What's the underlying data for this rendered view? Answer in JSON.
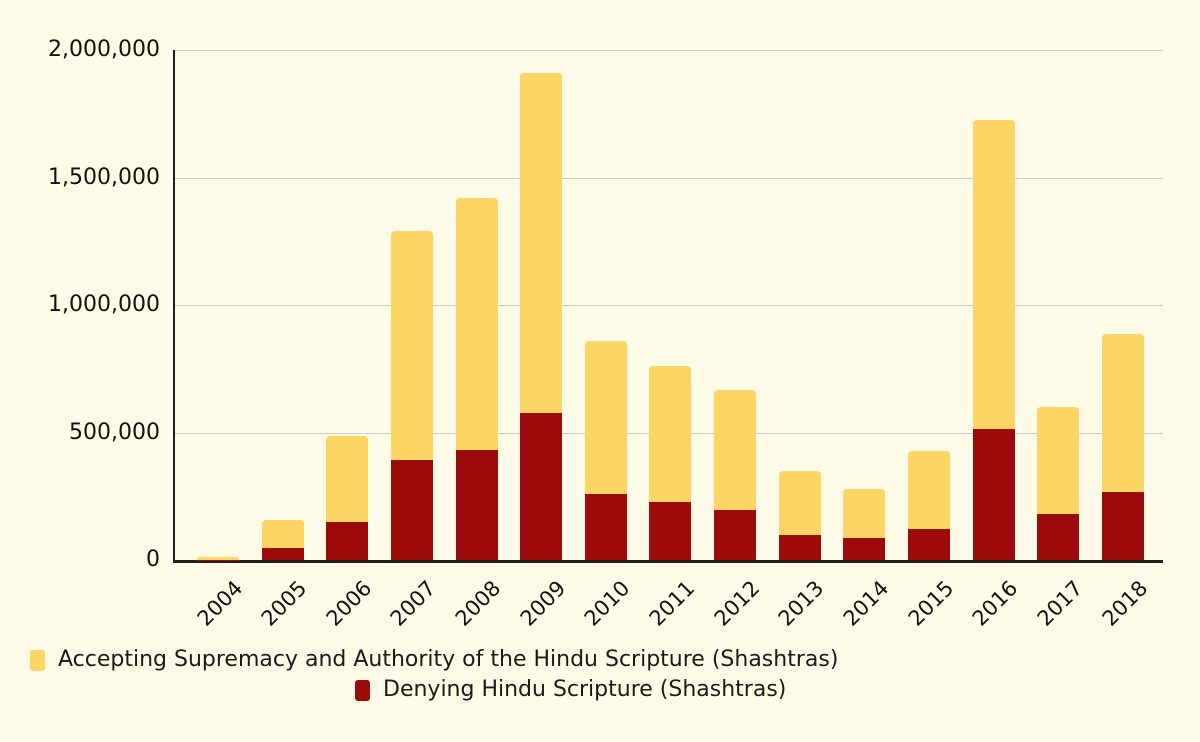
{
  "chart_data": {
    "type": "bar",
    "stacked": true,
    "title": "",
    "xlabel": "",
    "ylabel": "",
    "categories": [
      "2004",
      "2005",
      "2006",
      "2007",
      "2008",
      "2009",
      "2010",
      "2011",
      "2012",
      "2013",
      "2014",
      "2015",
      "2016",
      "2017",
      "2018"
    ],
    "series": [
      {
        "name": "Accepting Supremacy and Authority of the Hindu Scripture (Shashtras)",
        "color": "#FCD565",
        "values": [
          10000,
          109000,
          339000,
          897000,
          990000,
          1333000,
          602000,
          535000,
          472000,
          250000,
          192000,
          307000,
          1213000,
          420000,
          620000
        ]
      },
      {
        "name": "Denying Hindu Scripture (Shashtras)",
        "color": "#9C0A0A",
        "values": [
          2000,
          48000,
          148000,
          393000,
          430000,
          576000,
          258000,
          227000,
          196000,
          100000,
          88000,
          122000,
          512000,
          180000,
          265000
        ]
      }
    ],
    "stack_bottom_series_index": 1,
    "ylim": [
      0,
      2000000
    ],
    "ytick_interval": 500000,
    "yticks": [
      {
        "value": 0,
        "label": "0"
      },
      {
        "value": 500000,
        "label": "500,000"
      },
      {
        "value": 1000000,
        "label": "1,000,000"
      },
      {
        "value": 1500000,
        "label": "1,500,000"
      },
      {
        "value": 2000000,
        "label": "2,000,000"
      }
    ],
    "grid": true,
    "legend_position": "bottom",
    "background_color": "#FDFBE8",
    "gridline_color": "#CCCCC4",
    "axis_color": "#1F1F1F"
  }
}
